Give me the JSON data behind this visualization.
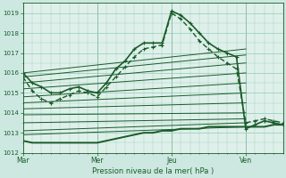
{
  "bg_color": "#cce8e0",
  "plot_bg_color": "#dff0ea",
  "grid_color": "#9ecfbf",
  "line_color": "#1a5c2a",
  "xlabel": "Pression niveau de la mer( hPa )",
  "x_ticks": [
    0,
    48,
    96,
    144
  ],
  "x_tick_labels": [
    "Mar",
    "Mer",
    "Jeu",
    "Ven"
  ],
  "ylim": [
    1012.0,
    1019.5
  ],
  "yticks": [
    1012,
    1013,
    1014,
    1015,
    1016,
    1017,
    1018,
    1019
  ],
  "figsize": [
    3.2,
    2.0
  ],
  "dpi": 100,
  "straight_lines": [
    {
      "x0": 0,
      "y0": 1016.0,
      "x1": 144,
      "y1": 1017.2
    },
    {
      "x0": 0,
      "y0": 1015.8,
      "x1": 144,
      "y1": 1016.9
    },
    {
      "x0": 0,
      "y0": 1015.5,
      "x1": 144,
      "y1": 1016.5
    },
    {
      "x0": 0,
      "y0": 1015.2,
      "x1": 144,
      "y1": 1016.0
    },
    {
      "x0": 0,
      "y0": 1014.8,
      "x1": 144,
      "y1": 1015.5
    },
    {
      "x0": 0,
      "y0": 1014.5,
      "x1": 144,
      "y1": 1015.0
    },
    {
      "x0": 0,
      "y0": 1014.2,
      "x1": 144,
      "y1": 1014.5
    },
    {
      "x0": 0,
      "y0": 1013.9,
      "x1": 144,
      "y1": 1014.0
    },
    {
      "x0": 0,
      "y0": 1013.5,
      "x1": 144,
      "y1": 1013.7
    },
    {
      "x0": 0,
      "y0": 1013.1,
      "x1": 144,
      "y1": 1013.5
    },
    {
      "x0": 0,
      "y0": 1012.9,
      "x1": 144,
      "y1": 1013.3
    }
  ],
  "wavy_lines": [
    {
      "x": [
        0,
        6,
        12,
        18,
        24,
        30,
        36,
        42,
        48,
        54,
        60,
        66,
        72,
        78,
        84,
        90,
        96,
        102,
        108,
        114,
        120,
        126,
        132,
        138,
        144,
        150,
        156,
        162,
        168
      ],
      "y": [
        1016.0,
        1015.5,
        1015.3,
        1015.0,
        1015.0,
        1015.2,
        1015.3,
        1015.1,
        1015.0,
        1015.5,
        1016.2,
        1016.6,
        1017.2,
        1017.5,
        1017.5,
        1017.5,
        1019.1,
        1018.9,
        1018.5,
        1018.0,
        1017.5,
        1017.2,
        1017.0,
        1016.8,
        1013.2,
        1013.4,
        1013.6,
        1013.5,
        1013.4
      ],
      "lw": 1.2,
      "marker": "+"
    },
    {
      "x": [
        0,
        6,
        12,
        18,
        24,
        30,
        36,
        42,
        48,
        54,
        60,
        66,
        72,
        78,
        84,
        90,
        96,
        102,
        108,
        114,
        120,
        126,
        132,
        138,
        144,
        150,
        156,
        162,
        168
      ],
      "y": [
        1015.8,
        1015.1,
        1014.7,
        1014.5,
        1014.7,
        1014.9,
        1015.1,
        1015.0,
        1014.8,
        1015.3,
        1015.8,
        1016.3,
        1016.8,
        1017.2,
        1017.3,
        1017.4,
        1019.0,
        1018.7,
        1018.2,
        1017.6,
        1017.2,
        1016.8,
        1016.5,
        1016.2,
        1013.5,
        1013.6,
        1013.7,
        1013.6,
        1013.5
      ],
      "lw": 1.0,
      "marker": "+",
      "dashed": true
    }
  ],
  "bottom_line": {
    "x": [
      0,
      6,
      12,
      18,
      24,
      30,
      36,
      42,
      48,
      54,
      60,
      66,
      72,
      78,
      84,
      90,
      96,
      102,
      108,
      114,
      120,
      126,
      132,
      138,
      144,
      150,
      156,
      162,
      168
    ],
    "y": [
      1012.6,
      1012.5,
      1012.5,
      1012.5,
      1012.5,
      1012.5,
      1012.5,
      1012.5,
      1012.5,
      1012.6,
      1012.7,
      1012.8,
      1012.9,
      1013.0,
      1013.0,
      1013.1,
      1013.1,
      1013.2,
      1013.2,
      1013.2,
      1013.3,
      1013.3,
      1013.3,
      1013.3,
      1013.3,
      1013.3,
      1013.3,
      1013.4,
      1013.4
    ],
    "lw": 1.4
  }
}
